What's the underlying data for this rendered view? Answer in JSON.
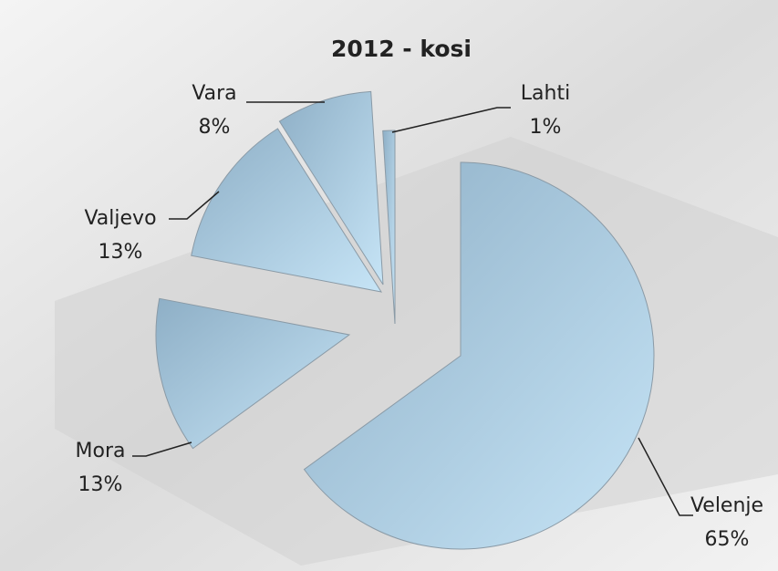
{
  "chart_data": {
    "type": "pie",
    "title": "2012 - kosi",
    "categories": [
      "Velenje",
      "Mora",
      "Valjevo",
      "Vara",
      "Lahti"
    ],
    "values": [
      65,
      13,
      13,
      8,
      1
    ],
    "value_labels": [
      "65%",
      "13%",
      "13%",
      "8%",
      "1%"
    ],
    "color": "#a9cbe3"
  }
}
